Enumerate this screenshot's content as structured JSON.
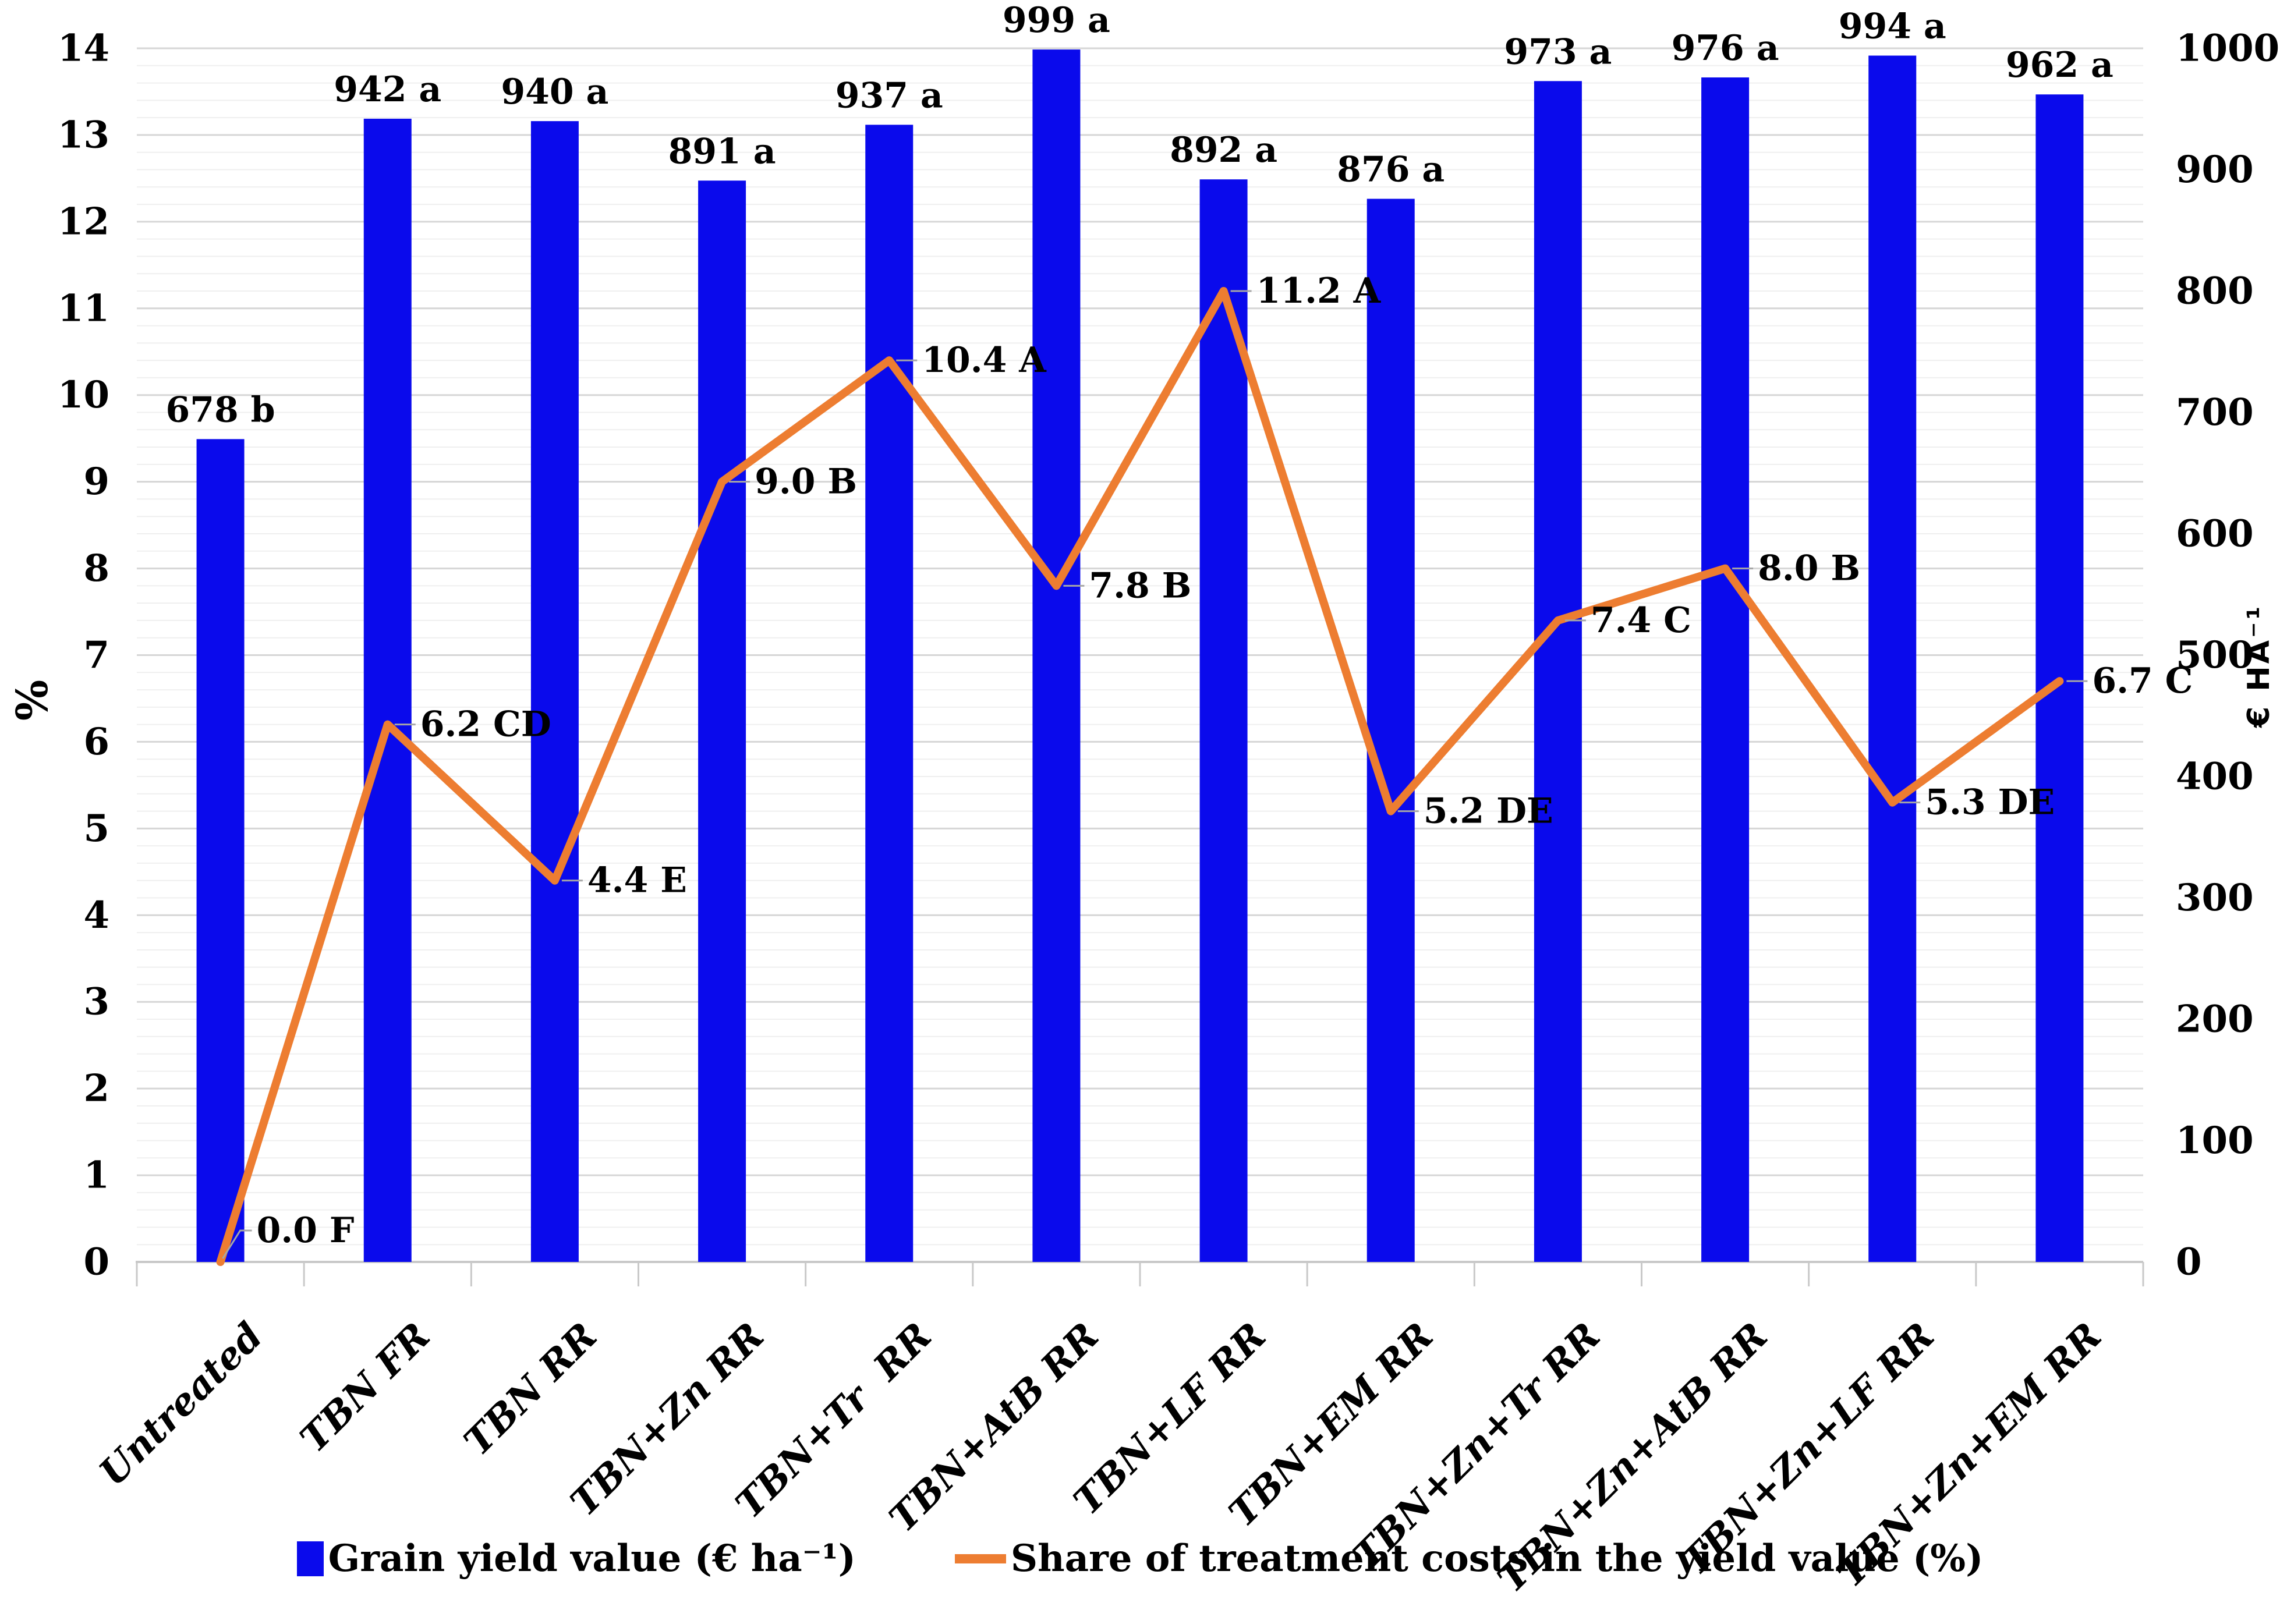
{
  "chart_data": {
    "type": "bar+line-combo",
    "categories": [
      "Untreated",
      "TBN FR",
      "TBN RR",
      "TBN+Zn RR",
      "TBN+Tr  RR",
      "TBN+AtB RR",
      "TBN+LF RR",
      "TBN+EM RR",
      "TBN+Zn+Tr RR",
      "TBN+Zn+AtB RR",
      "TBN+Zn+LF RR",
      "TBN+Zn+EM RR"
    ],
    "series": [
      {
        "name": "Grain yield value (€ ha⁻¹)",
        "type": "bar",
        "axis": "right",
        "color": "#0a0aec",
        "values": [
          678,
          942,
          940,
          891,
          937,
          999,
          892,
          876,
          973,
          976,
          994,
          962
        ],
        "labels": [
          "678 b",
          "942 a",
          "940 a",
          "891 a",
          "937 a",
          "999 a",
          "892 a",
          "876 a",
          "973 a",
          "976 a",
          "994 a",
          "962 a"
        ]
      },
      {
        "name": "Share of treatment costs in the yield value (%)",
        "type": "line",
        "axis": "left",
        "color": "#ED7D31",
        "values": [
          0.0,
          6.2,
          4.4,
          9.0,
          10.4,
          7.8,
          11.2,
          5.2,
          7.4,
          8.0,
          5.3,
          6.7
        ],
        "labels": [
          "0.0 F",
          "6.2 CD",
          "4.4 E",
          "9.0 B",
          "10.4 A",
          "7.8 B",
          "11.2 A",
          "5.2 DE",
          "7.4 C",
          "8.0 B",
          "5.3 DE",
          "6.7 C"
        ]
      }
    ],
    "left_axis": {
      "label": "%",
      "min": 0,
      "max": 14,
      "tick_step": 1,
      "ticks": [
        "0",
        "1",
        "2",
        "3",
        "4",
        "5",
        "6",
        "7",
        "8",
        "9",
        "10",
        "11",
        "12",
        "13",
        "14"
      ]
    },
    "right_axis": {
      "label": "€ HA⁻¹",
      "min": 0,
      "max": 1000,
      "tick_step": 100,
      "ticks": [
        "0",
        "100",
        "200",
        "300",
        "400",
        "500",
        "600",
        "700",
        "800",
        "900",
        "1000"
      ]
    },
    "grid": {
      "minor_step_left_units": 0.2,
      "major_step_left_units": 1,
      "minor_color": "#EFEFEF",
      "major_color": "#D6D6D6",
      "axis_color": "#C9C9C9"
    },
    "leader_line_color": "#A6A6A6",
    "legend_position": "bottom"
  }
}
